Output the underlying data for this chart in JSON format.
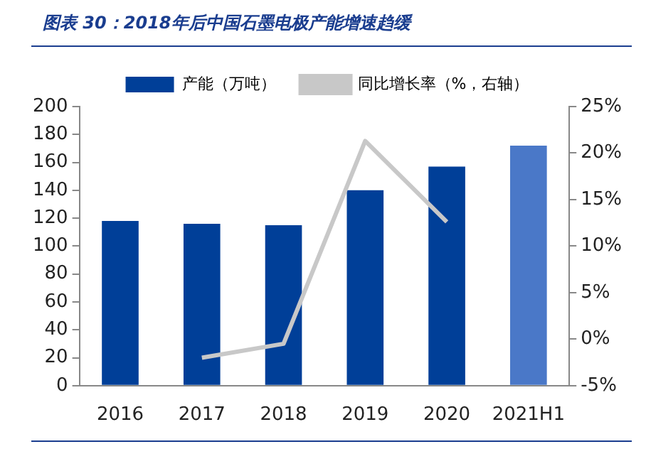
{
  "chart_data": {
    "type": "bar",
    "title": "图表 30：2018年后中国石墨电极产能增速趋缓",
    "categories": [
      "2016",
      "2017",
      "2018",
      "2019",
      "2020",
      "2021H1"
    ],
    "series": [
      {
        "name": "产能（万吨）",
        "color": "#003f98",
        "colors": [
          "#003f98",
          "#003f98",
          "#003f98",
          "#003f98",
          "#003f98",
          "#4a78c8"
        ],
        "values": [
          118,
          116,
          115,
          140,
          157,
          172
        ]
      },
      {
        "name": "同比增长率（%，右轴）",
        "type": "line",
        "axis": "y2",
        "color": "#c8c8c8",
        "values": [
          null,
          -2.0,
          -0.5,
          21.3,
          12.6,
          null
        ]
      }
    ],
    "ylim": [
      0,
      200
    ],
    "yticks": [
      0,
      20,
      40,
      60,
      80,
      100,
      120,
      140,
      160,
      180,
      200
    ],
    "y2lim": [
      -5,
      25
    ],
    "y2ticks": [
      {
        "value": -5,
        "label": "-5%"
      },
      {
        "value": 0,
        "label": "0%"
      },
      {
        "value": 5,
        "label": "5%"
      },
      {
        "value": 10,
        "label": "10%"
      },
      {
        "value": 15,
        "label": "15%"
      },
      {
        "value": 20,
        "label": "20%"
      },
      {
        "value": 25,
        "label": "25%"
      }
    ],
    "grid": false,
    "legend": "top",
    "marker": "none"
  }
}
